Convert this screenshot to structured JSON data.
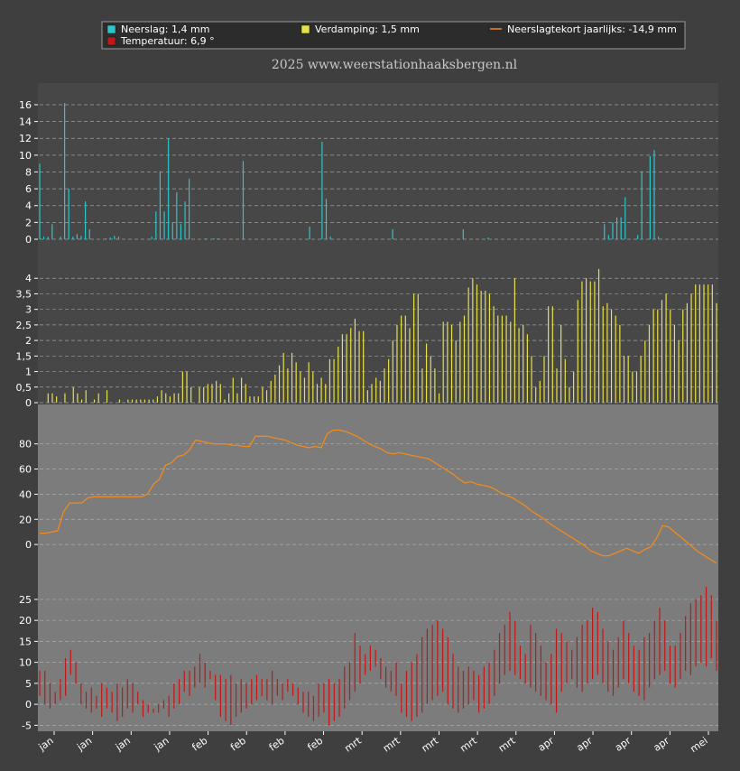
{
  "legend": {
    "precip": "Neerslag: 1,4 mm",
    "evap": "Verdamping: 1,5 mm",
    "deficit": "Neerslagtekort jaarlijks: -14,9 mm",
    "temp": "Temperatuur: 6,9 °"
  },
  "title": "2025  www.weerstationhaaksbergen.nl",
  "colors": {
    "page": "#3f3f3f",
    "plot": "#7c7c7c",
    "precip": "#2ec4c8",
    "evap": "#e6e04a",
    "deficit": "#f08a1e",
    "temp": "#c01818",
    "tick": "#ffffff"
  },
  "x_labels": [
    "jan",
    "jan",
    "jan",
    "jan",
    "feb",
    "feb",
    "feb",
    "feb",
    "mrt",
    "mrt",
    "mrt",
    "mrt",
    "mrt",
    "apr",
    "apr",
    "apr",
    "apr",
    "mei"
  ],
  "chart_data": [
    {
      "type": "bar",
      "name": "precip",
      "ylim": [
        0,
        17.5
      ],
      "yticks": [
        0,
        2,
        4,
        6,
        8,
        10,
        12,
        14,
        16
      ],
      "grid": true,
      "series": [
        {
          "name": "Neerslag: 1,4 mm",
          "values": [
            9.0,
            0.3,
            0.3,
            1.8,
            0,
            0.3,
            16.2,
            6.0,
            0.3,
            0.6,
            0.4,
            4.5,
            1.2,
            0,
            0,
            0,
            0.1,
            0.2,
            0.4,
            0.3,
            0,
            0,
            0,
            0,
            0,
            0,
            0,
            0.3,
            3.3,
            8.1,
            3.3,
            12.0,
            2.0,
            5.6,
            1.8,
            4.5,
            7.2,
            0,
            0,
            0,
            0.1,
            0,
            0.1,
            0.1,
            0,
            0,
            0,
            0,
            0,
            9.3,
            0,
            0,
            0,
            0,
            0,
            0,
            0,
            0,
            0,
            0,
            0,
            0,
            0,
            0,
            0,
            1.5,
            0,
            0,
            11.6,
            4.8,
            0.3,
            0,
            0,
            0,
            0,
            0,
            0,
            0,
            0,
            0,
            0,
            0,
            0,
            0,
            0,
            1.2,
            0,
            0,
            0,
            0,
            0,
            0,
            0,
            0,
            0,
            0,
            0,
            0,
            0,
            0,
            0,
            0,
            1.2,
            0,
            0,
            0,
            0,
            0,
            0.2,
            0,
            0,
            0,
            0,
            0,
            0,
            0,
            0,
            0,
            0,
            0,
            0,
            0,
            0,
            0,
            0,
            0,
            0,
            0,
            0,
            0,
            0,
            0,
            0,
            0,
            0,
            0,
            1.8,
            0.5,
            2.0,
            2.6,
            2.6,
            5.0,
            0,
            0,
            0.5,
            8.1,
            0,
            9.9,
            10.6,
            0.3,
            0,
            0,
            0,
            0,
            0,
            0,
            0,
            0,
            0,
            0,
            0,
            0,
            0,
            0
          ]
        }
      ]
    },
    {
      "type": "bar",
      "name": "evap",
      "ylim": [
        0,
        4.5
      ],
      "yticks": [
        0,
        0.5,
        1,
        1.5,
        2,
        2.5,
        3,
        3.5,
        4
      ],
      "ytick_labels": [
        "0",
        "0,5",
        "1",
        "1,5",
        "2",
        "2,5",
        "3",
        "3,5",
        "4"
      ],
      "grid": true,
      "series": [
        {
          "name": "Verdamping: 1,5 mm",
          "values": [
            0,
            0,
            0.3,
            0.3,
            0.2,
            0,
            0.3,
            0,
            0.5,
            0.3,
            0.1,
            0.4,
            0,
            0.1,
            0.3,
            0,
            0.4,
            0,
            0,
            0.1,
            0,
            0.1,
            0.1,
            0.1,
            0.1,
            0.1,
            0.1,
            0.1,
            0.2,
            0.4,
            0.3,
            0.2,
            0.3,
            0.3,
            1.0,
            1.0,
            0.5,
            0,
            0.5,
            0.5,
            0.6,
            0.6,
            0.7,
            0.6,
            0.1,
            0.3,
            0.8,
            0.3,
            0.8,
            0.6,
            0.2,
            0.2,
            0.2,
            0.5,
            0.4,
            0.7,
            0.9,
            1.2,
            1.6,
            1.1,
            1.6,
            1.3,
            1.0,
            0.8,
            1.3,
            1.0,
            0.6,
            0.8,
            0.6,
            1.4,
            1.4,
            1.8,
            2.2,
            2.2,
            2.4,
            2.7,
            2.3,
            2.3,
            0.4,
            0.6,
            0.8,
            0.7,
            1.1,
            1.4,
            2.0,
            2.5,
            2.8,
            2.8,
            2.4,
            3.5,
            3.5,
            1.1,
            1.9,
            1.5,
            1.1,
            0.3,
            2.6,
            2.6,
            2.5,
            2.0,
            2.6,
            2.8,
            3.7,
            4.0,
            3.8,
            3.6,
            3.6,
            3.5,
            3.1,
            2.8,
            2.8,
            2.8,
            2.6,
            4.0,
            2.4,
            2.5,
            2.2,
            1.5,
            0.5,
            0.7,
            1.5,
            3.1,
            3.1,
            1.1,
            2.5,
            1.4,
            0.5,
            1.0,
            3.3,
            3.9,
            4.0,
            3.9,
            3.9,
            4.3,
            3.1,
            3.2,
            3.0,
            2.8,
            2.5,
            1.5,
            1.5,
            1.0,
            1.0,
            1.5,
            2.0,
            2.5,
            3.0,
            3.0,
            3.3,
            3.5,
            3.0,
            2.5,
            2.0,
            3.0,
            3.2,
            3.5,
            3.8,
            3.8,
            3.8,
            3.8,
            3.8,
            3.2
          ]
        }
      ]
    },
    {
      "type": "line",
      "name": "deficit",
      "ylim": [
        -15,
        97
      ],
      "yticks": [
        0,
        20,
        40,
        60,
        80
      ],
      "grid": true,
      "series": [
        {
          "name": "Neerslagtekort jaarlijks: -14,9 mm",
          "values": [
            9,
            9,
            10,
            11,
            26,
            33,
            33,
            33,
            37,
            38,
            38,
            38,
            38,
            38,
            38,
            38,
            38,
            38,
            40,
            48,
            52,
            63,
            65,
            70,
            71,
            75,
            83,
            82,
            81,
            80,
            80,
            80,
            79,
            79,
            78,
            78,
            86,
            86,
            86,
            85,
            84,
            83,
            81,
            79,
            78,
            77,
            78,
            77,
            88,
            91,
            91,
            90,
            88,
            86,
            83,
            80,
            78,
            76,
            73,
            72,
            73,
            72,
            71,
            70,
            69,
            68,
            65,
            62,
            59,
            56,
            52,
            49,
            50,
            48,
            47,
            46,
            44,
            41,
            39,
            37,
            34,
            31,
            27,
            24,
            21,
            17,
            14,
            11,
            8,
            5,
            2,
            -1,
            -5,
            -7,
            -9,
            -9,
            -7,
            -5,
            -3,
            -5,
            -7,
            -4,
            -2,
            5,
            15,
            14,
            10,
            6,
            2,
            -2,
            -6,
            -9,
            -12,
            -15
          ]
        }
      ]
    },
    {
      "type": "bar",
      "name": "temp",
      "ylim": [
        -6,
        28
      ],
      "yticks": [
        -5,
        0,
        5,
        10,
        15,
        20,
        25
      ],
      "grid": true,
      "series": [
        {
          "name": "Temperatuur: 6,9 °",
          "values": [
            [
              2,
              8
            ],
            [
              0,
              8
            ],
            [
              -1,
              5
            ],
            [
              0,
              3
            ],
            [
              1,
              6
            ],
            [
              2,
              11
            ],
            [
              7,
              13
            ],
            [
              5,
              10
            ],
            [
              0,
              5
            ],
            [
              -1,
              3
            ],
            [
              -2,
              4
            ],
            [
              -1,
              2
            ],
            [
              -3,
              5
            ],
            [
              -1,
              4
            ],
            [
              -2,
              3
            ],
            [
              -4,
              5
            ],
            [
              -3,
              4
            ],
            [
              -1,
              6
            ],
            [
              -2,
              5
            ],
            [
              0,
              3
            ],
            [
              -3,
              1
            ],
            [
              -2,
              0
            ],
            [
              -2,
              -1
            ],
            [
              -2,
              0
            ],
            [
              -1,
              1
            ],
            [
              -3,
              2
            ],
            [
              -1,
              5
            ],
            [
              0,
              6
            ],
            [
              3,
              8
            ],
            [
              2,
              8
            ],
            [
              4,
              9
            ],
            [
              5,
              12
            ],
            [
              4,
              10
            ],
            [
              6,
              8
            ],
            [
              1,
              7
            ],
            [
              -3,
              7
            ],
            [
              -4,
              6
            ],
            [
              -5,
              7
            ],
            [
              -3,
              5
            ],
            [
              -2,
              6
            ],
            [
              -1,
              5
            ],
            [
              0,
              6
            ],
            [
              1,
              7
            ],
            [
              2,
              6
            ],
            [
              1,
              6
            ],
            [
              0,
              8
            ],
            [
              2,
              6
            ],
            [
              1,
              5
            ],
            [
              3,
              6
            ],
            [
              2,
              5
            ],
            [
              0,
              4
            ],
            [
              -2,
              3
            ],
            [
              -3,
              3
            ],
            [
              -4,
              2
            ],
            [
              -3,
              5
            ],
            [
              -2,
              5
            ],
            [
              -5,
              6
            ],
            [
              -4,
              5
            ],
            [
              -3,
              6
            ],
            [
              -1,
              9
            ],
            [
              1,
              10
            ],
            [
              3,
              17
            ],
            [
              5,
              14
            ],
            [
              7,
              12
            ],
            [
              8,
              14
            ],
            [
              9,
              13
            ],
            [
              6,
              11
            ],
            [
              4,
              9
            ],
            [
              3,
              8
            ],
            [
              2,
              10
            ],
            [
              -2,
              5
            ],
            [
              -3,
              8
            ],
            [
              -4,
              10
            ],
            [
              -3,
              12
            ],
            [
              -2,
              16
            ],
            [
              0,
              18
            ],
            [
              1,
              19
            ],
            [
              2,
              20
            ],
            [
              3,
              18
            ],
            [
              0,
              16
            ],
            [
              -1,
              12
            ],
            [
              -2,
              9
            ],
            [
              -1,
              8
            ],
            [
              0,
              9
            ],
            [
              1,
              8
            ],
            [
              -2,
              7
            ],
            [
              -1,
              9
            ],
            [
              0,
              10
            ],
            [
              2,
              13
            ],
            [
              5,
              17
            ],
            [
              7,
              19
            ],
            [
              8,
              22
            ],
            [
              7,
              20
            ],
            [
              6,
              14
            ],
            [
              5,
              12
            ],
            [
              4,
              19
            ],
            [
              3,
              17
            ],
            [
              2,
              14
            ],
            [
              1,
              10
            ],
            [
              0,
              12
            ],
            [
              -2,
              18
            ],
            [
              3,
              17
            ],
            [
              5,
              15
            ],
            [
              6,
              13
            ],
            [
              4,
              16
            ],
            [
              3,
              19
            ],
            [
              5,
              20
            ],
            [
              6,
              23
            ],
            [
              7,
              22
            ],
            [
              5,
              18
            ],
            [
              3,
              15
            ],
            [
              2,
              13
            ],
            [
              4,
              16
            ],
            [
              6,
              20
            ],
            [
              5,
              17
            ],
            [
              3,
              14
            ],
            [
              2,
              13
            ],
            [
              1,
              16
            ],
            [
              4,
              17
            ],
            [
              6,
              20
            ],
            [
              7,
              23
            ],
            [
              8,
              20
            ],
            [
              5,
              14
            ],
            [
              4,
              14
            ],
            [
              6,
              17
            ],
            [
              8,
              21
            ],
            [
              7,
              24
            ],
            [
              9,
              25
            ],
            [
              10,
              26
            ],
            [
              9,
              28
            ],
            [
              11,
              26
            ],
            [
              8,
              20
            ]
          ]
        }
      ]
    }
  ]
}
